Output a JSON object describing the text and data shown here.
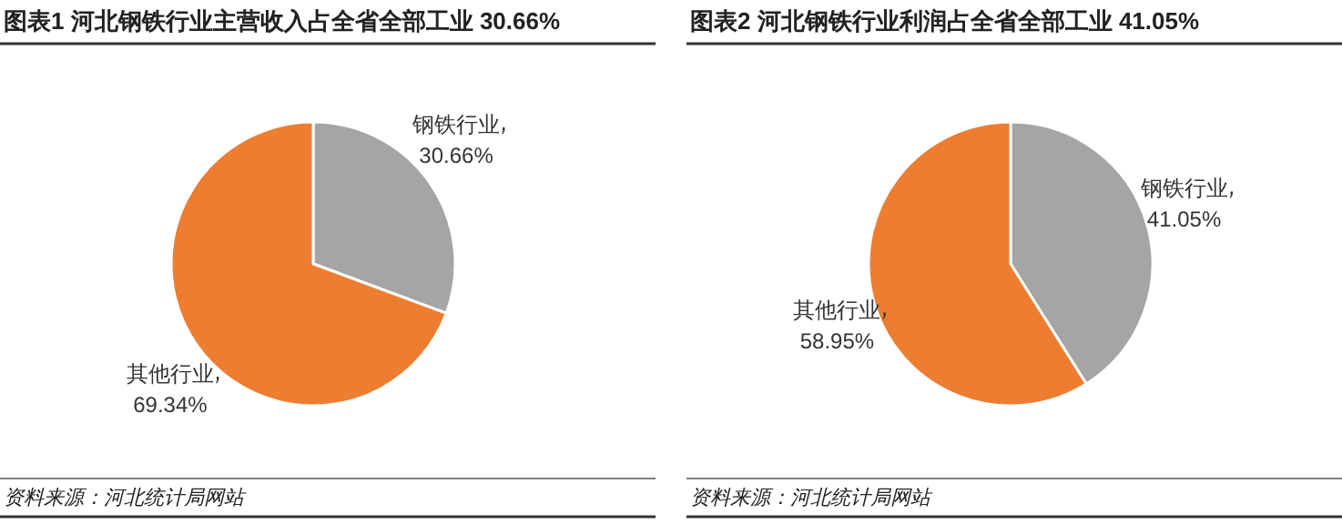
{
  "chart_data": [
    {
      "type": "pie",
      "title": "图表1  河北钢铁行业主营收入占全省全部工业 30.66%",
      "categories": [
        "钢铁行业",
        "其他行业"
      ],
      "values": [
        30.66,
        69.34
      ],
      "value_labels": [
        "30.66%",
        "69.34%"
      ],
      "colors": [
        "#a5a5a5",
        "#ed7d31"
      ],
      "annotations": [
        "资料来源：河北统计局网站"
      ]
    },
    {
      "type": "pie",
      "title": "图表2  河北钢铁行业利润占全省全部工业 41.05%",
      "categories": [
        "钢铁行业",
        "其他行业"
      ],
      "values": [
        41.05,
        58.95
      ],
      "value_labels": [
        "41.05%",
        "58.95%"
      ],
      "colors": [
        "#a5a5a5",
        "#ed7d31"
      ],
      "annotations": [
        "资料来源：河北统计局网站"
      ]
    }
  ]
}
